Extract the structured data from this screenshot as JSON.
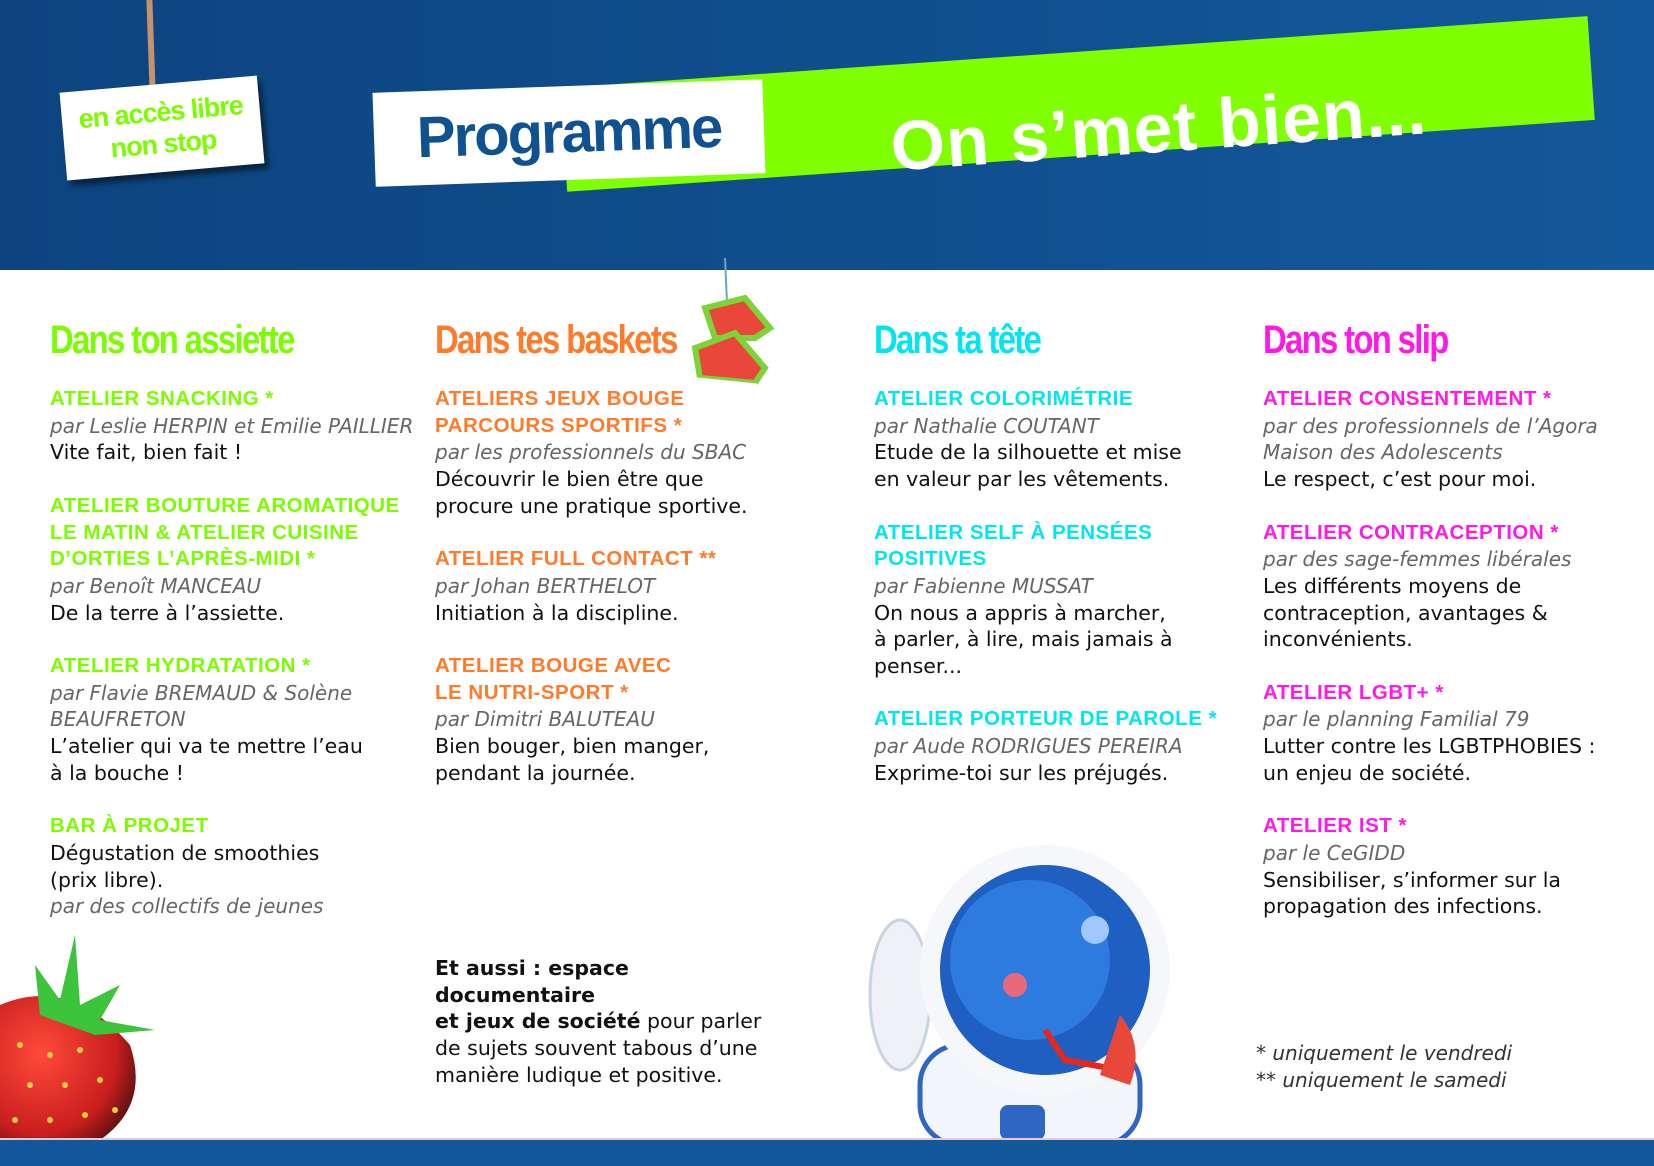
{
  "header": {
    "tag": "en accès libre\nnon stop",
    "programme": "Programme",
    "title": "On s’met bien..."
  },
  "colors": {
    "blue": "#13589a",
    "green": "#7cfc00",
    "orange": "#ff7a2a",
    "cyan": "#00e5f0",
    "magenta": "#ff19e6"
  },
  "columns": [
    {
      "heading": "Dans ton assiette",
      "items": [
        {
          "title": "ATELIER SNACKING *",
          "by": "par Leslie HERPIN et Emilie PAILLIER",
          "desc": "Vite fait, bien fait !"
        },
        {
          "title": "ATELIER BOUTURE AROMATIQUE\nLE MATIN & ATELIER CUISINE\nD’ORTIES L’APRÈS-MIDI *",
          "by": "par Benoît MANCEAU",
          "desc": "De la terre à l’assiette."
        },
        {
          "title": "ATELIER HYDRATATION *",
          "by": "par Flavie BREMAUD & Solène\nBEAUFRETON",
          "desc": "L’atelier qui va te mettre l’eau\nà la bouche !"
        },
        {
          "title": "BAR À PROJET",
          "desc": "Dégustation de smoothies\n(prix libre).",
          "by": "par des collectifs de jeunes"
        }
      ]
    },
    {
      "heading": "Dans tes baskets",
      "items": [
        {
          "title": "ATELIERS JEUX BOUGE\nPARCOURS SPORTIFS *",
          "by": "par les professionnels du SBAC",
          "desc": "Découvrir le bien être que\nprocure une pratique sportive."
        },
        {
          "title": "ATELIER FULL CONTACT **",
          "by": "par Johan BERTHELOT",
          "desc": "Initiation à la discipline."
        },
        {
          "title": "ATELIER BOUGE AVEC\nLE NUTRI-SPORT *",
          "by": "par Dimitri BALUTEAU",
          "desc": "Bien bouger, bien manger,\npendant la journée."
        }
      ]
    },
    {
      "heading": "Dans ta tête",
      "items": [
        {
          "title": "ATELIER COLORIMÉTRIE",
          "by": "par Nathalie COUTANT",
          "desc": "Etude de la silhouette et mise\nen valeur par les vêtements."
        },
        {
          "title": "ATELIER SELF À PENSÉES\nPOSITIVES",
          "by": "par Fabienne MUSSAT",
          "desc": "On nous a appris à marcher,\nà parler, à lire, mais jamais à\npenser..."
        },
        {
          "title": "ATELIER PORTEUR DE PAROLE *",
          "by": "par Aude RODRIGUES PEREIRA",
          "desc": "Exprime-toi sur les préjugés."
        }
      ]
    },
    {
      "heading": "Dans ton slip",
      "items": [
        {
          "title": "ATELIER CONSENTEMENT *",
          "by": "par des professionnels de l’Agora\nMaison des Adolescents",
          "desc": "Le respect, c’est pour moi."
        },
        {
          "title": "ATELIER CONTRACEPTION *",
          "by": "par des sage-femmes libérales",
          "desc": "Les différents moyens de\ncontraception, avantages &\ninconvénients."
        },
        {
          "title": "ATELIER LGBT+ *",
          "by": "par le planning Familial 79",
          "desc": "Lutter contre les LGBTPHOBIES :\nun enjeu de société."
        },
        {
          "title": "ATELIER IST *",
          "by": "par le CeGIDD",
          "desc": "Sensibiliser, s’informer sur la\npropagation des infections."
        }
      ]
    }
  ],
  "aussi": {
    "bold1": "Et aussi : espace documentaire",
    "bold2": "et jeux de société",
    "rest1": " pour parler",
    "rest2": "de sujets souvent tabous d’une",
    "rest3": "manière ludique et positive."
  },
  "notes": "* uniquement le vendredi\n** uniquement le samedi"
}
